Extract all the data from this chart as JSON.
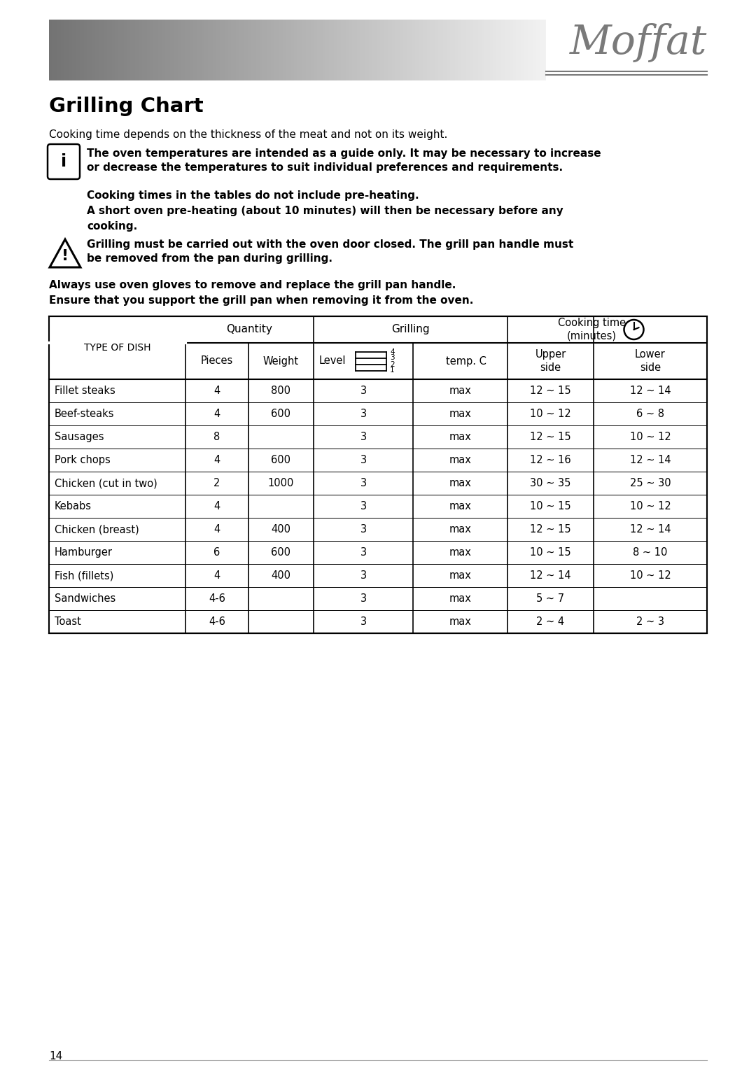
{
  "title": "Grilling Chart",
  "subtitle": "Cooking time depends on the thickness of the meat and not on its weight.",
  "info_text_line1": "The oven temperatures are intended as a guide only. It may be necessary to increase",
  "info_text_line2": "or decrease the temperatures to suit individual preferences and requirements.",
  "bold_line1": "Cooking times in the tables do not include pre-heating.",
  "bold_line2": "A short oven pre-heating (about 10 minutes) will then be necessary before any",
  "bold_line3": "cooking.",
  "warning_line1": "Grilling must be carried out with the oven door closed. The grill pan handle must",
  "warning_line2": "be removed from the pan during grilling.",
  "always_line1": "Always use oven gloves to remove and replace the grill pan handle.",
  "always_line2": "Ensure that you support the grill pan when removing it from the oven.",
  "table_data": [
    [
      "Fillet steaks",
      "4",
      "800",
      "3",
      "max",
      "12 ~ 15",
      "12 ~ 14"
    ],
    [
      "Beef-steaks",
      "4",
      "600",
      "3",
      "max",
      "10 ~ 12",
      "6 ~ 8"
    ],
    [
      "Sausages",
      "8",
      "",
      "3",
      "max",
      "12 ~ 15",
      "10 ~ 12"
    ],
    [
      "Pork chops",
      "4",
      "600",
      "3",
      "max",
      "12 ~ 16",
      "12 ~ 14"
    ],
    [
      "Chicken (cut in two)",
      "2",
      "1000",
      "3",
      "max",
      "30 ~ 35",
      "25 ~ 30"
    ],
    [
      "Kebabs",
      "4",
      "",
      "3",
      "max",
      "10 ~ 15",
      "10 ~ 12"
    ],
    [
      "Chicken (breast)",
      "4",
      "400",
      "3",
      "max",
      "12 ~ 15",
      "12 ~ 14"
    ],
    [
      "Hamburger",
      "6",
      "600",
      "3",
      "max",
      "10 ~ 15",
      "8 ~ 10"
    ],
    [
      "Fish (fillets)",
      "4",
      "400",
      "3",
      "max",
      "12 ~ 14",
      "10 ~ 12"
    ],
    [
      "Sandwiches",
      "4-6",
      "",
      "3",
      "max",
      "5 ~ 7",
      ""
    ],
    [
      "Toast",
      "4-6",
      "",
      "3",
      "max",
      "2 ~ 4",
      "2 ~ 3"
    ]
  ],
  "page_number": "14",
  "bg_color": "#ffffff",
  "text_color": "#000000",
  "moffat_color": "#7a7a7a"
}
